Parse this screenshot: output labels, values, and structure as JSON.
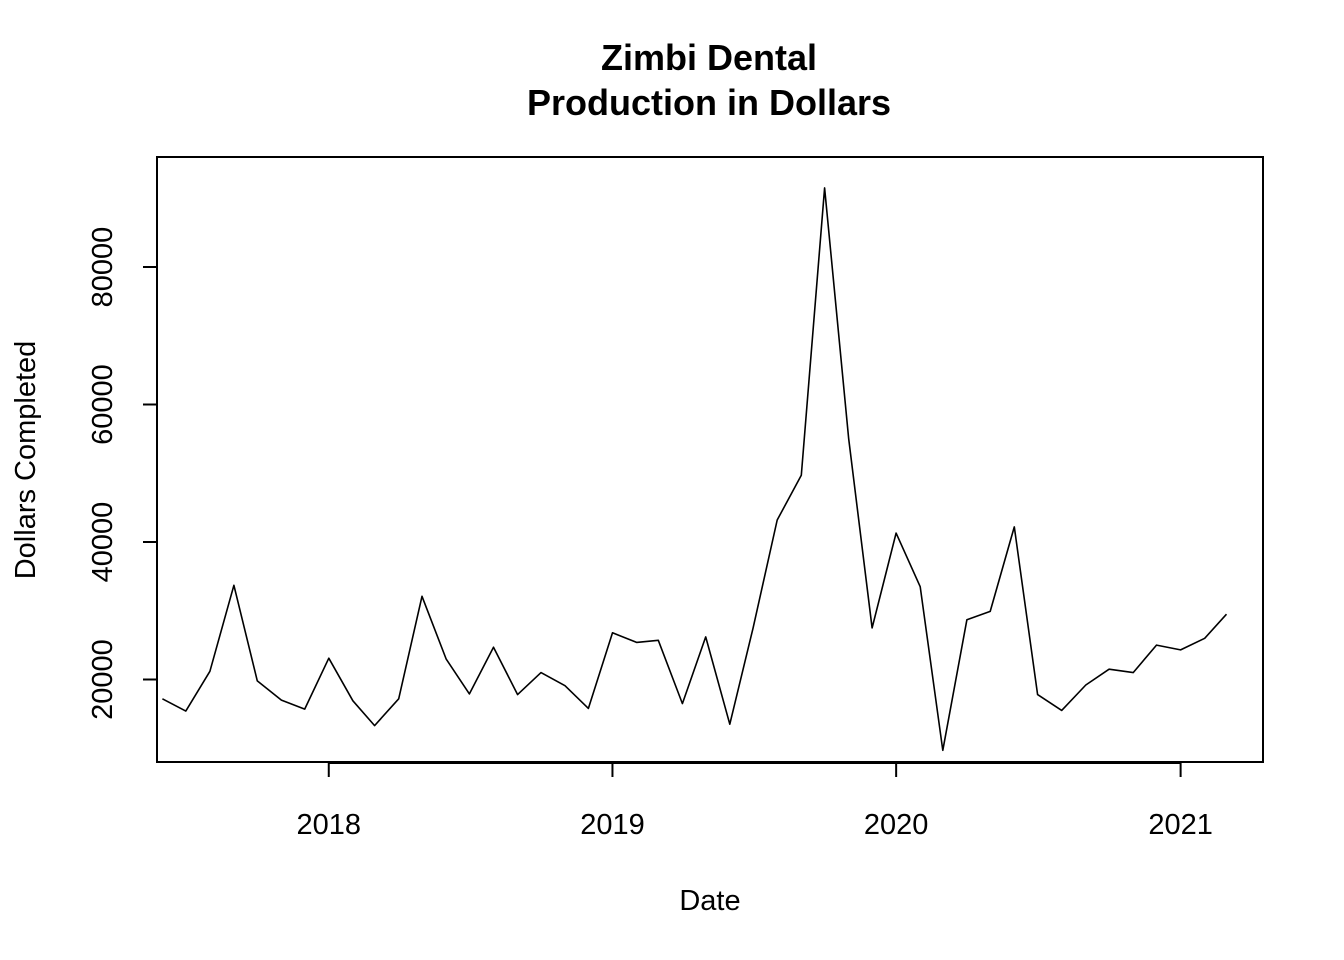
{
  "chart_data": {
    "type": "line",
    "title": [
      "Zimbi Dental",
      "Production in Dollars"
    ],
    "xlabel": "Date",
    "ylabel": "Dollars Completed",
    "x_axis_type": "date",
    "xlim": [
      "2017-05-25",
      "2021-04-17"
    ],
    "ylim": [
      8000,
      96000
    ],
    "x_ticks": [
      {
        "date": "2018-01-01",
        "label": "2018"
      },
      {
        "date": "2019-01-01",
        "label": "2019"
      },
      {
        "date": "2020-01-01",
        "label": "2020"
      },
      {
        "date": "2021-01-01",
        "label": "2021"
      }
    ],
    "y_ticks": [
      {
        "value": 20000,
        "label": "20000"
      },
      {
        "value": 40000,
        "label": "40000"
      },
      {
        "value": 60000,
        "label": "60000"
      },
      {
        "value": 80000,
        "label": "80000"
      }
    ],
    "grid": false,
    "legend": "none",
    "line_color": "#000000",
    "series": [
      {
        "x": [
          "2017-06-01",
          "2017-07-01",
          "2017-08-01",
          "2017-09-01",
          "2017-10-01",
          "2017-11-01",
          "2017-12-01",
          "2018-01-01",
          "2018-02-01",
          "2018-03-01",
          "2018-04-01",
          "2018-05-01",
          "2018-06-01",
          "2018-07-01",
          "2018-08-01",
          "2018-09-01",
          "2018-10-01",
          "2018-11-01",
          "2018-12-01",
          "2019-01-01",
          "2019-02-01",
          "2019-03-01",
          "2019-04-01",
          "2019-05-01",
          "2019-06-01",
          "2019-07-01",
          "2019-08-01",
          "2019-09-01",
          "2019-10-01",
          "2019-11-01",
          "2019-12-01",
          "2020-01-01",
          "2020-02-01",
          "2020-03-01",
          "2020-04-01",
          "2020-05-01",
          "2020-06-01",
          "2020-07-01",
          "2020-08-01",
          "2020-09-01",
          "2020-10-01",
          "2020-11-01",
          "2020-12-01",
          "2021-01-01",
          "2021-02-01",
          "2021-03-01"
        ],
        "values": [
          17200,
          15400,
          21200,
          33700,
          19800,
          17000,
          15700,
          23100,
          16900,
          13300,
          17200,
          32100,
          23000,
          17900,
          24700,
          17800,
          21000,
          19100,
          15800,
          26800,
          25400,
          25700,
          16500,
          26200,
          13500,
          27500,
          43200,
          49700,
          91500,
          55000,
          27500,
          41300,
          33500,
          9700,
          28700,
          29900,
          42200,
          17800,
          15500,
          19200,
          21500,
          21000,
          25000,
          24300,
          26000,
          29500
        ]
      }
    ]
  }
}
